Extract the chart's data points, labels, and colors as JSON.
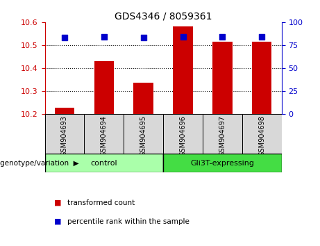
{
  "title": "GDS4346 / 8059361",
  "samples": [
    "GSM904693",
    "GSM904694",
    "GSM904695",
    "GSM904696",
    "GSM904697",
    "GSM904698"
  ],
  "transformed_count": [
    10.225,
    10.43,
    10.335,
    10.58,
    10.515,
    10.515
  ],
  "percentile_rank": [
    83,
    84,
    83,
    84,
    84,
    84
  ],
  "ylim_left": [
    10.2,
    10.6
  ],
  "ylim_right": [
    0,
    100
  ],
  "yticks_left": [
    10.2,
    10.3,
    10.4,
    10.5,
    10.6
  ],
  "yticks_right": [
    0,
    25,
    50,
    75,
    100
  ],
  "bar_color": "#cc0000",
  "dot_color": "#0000cc",
  "groups": [
    {
      "label": "control",
      "indices": [
        0,
        1,
        2
      ],
      "color": "#aaffaa"
    },
    {
      "label": "Gli3T-expressing",
      "indices": [
        3,
        4,
        5
      ],
      "color": "#44dd44"
    }
  ],
  "group_label_prefix": "genotype/variation",
  "legend_items": [
    {
      "color": "#cc0000",
      "label": "transformed count"
    },
    {
      "color": "#0000cc",
      "label": "percentile rank within the sample"
    }
  ],
  "bar_width": 0.5,
  "dot_size": 28,
  "background_color": "#d8d8d8",
  "plot_bg": "#ffffff",
  "tick_color_left": "#cc0000",
  "tick_color_right": "#0000cc",
  "n_samples": 6
}
